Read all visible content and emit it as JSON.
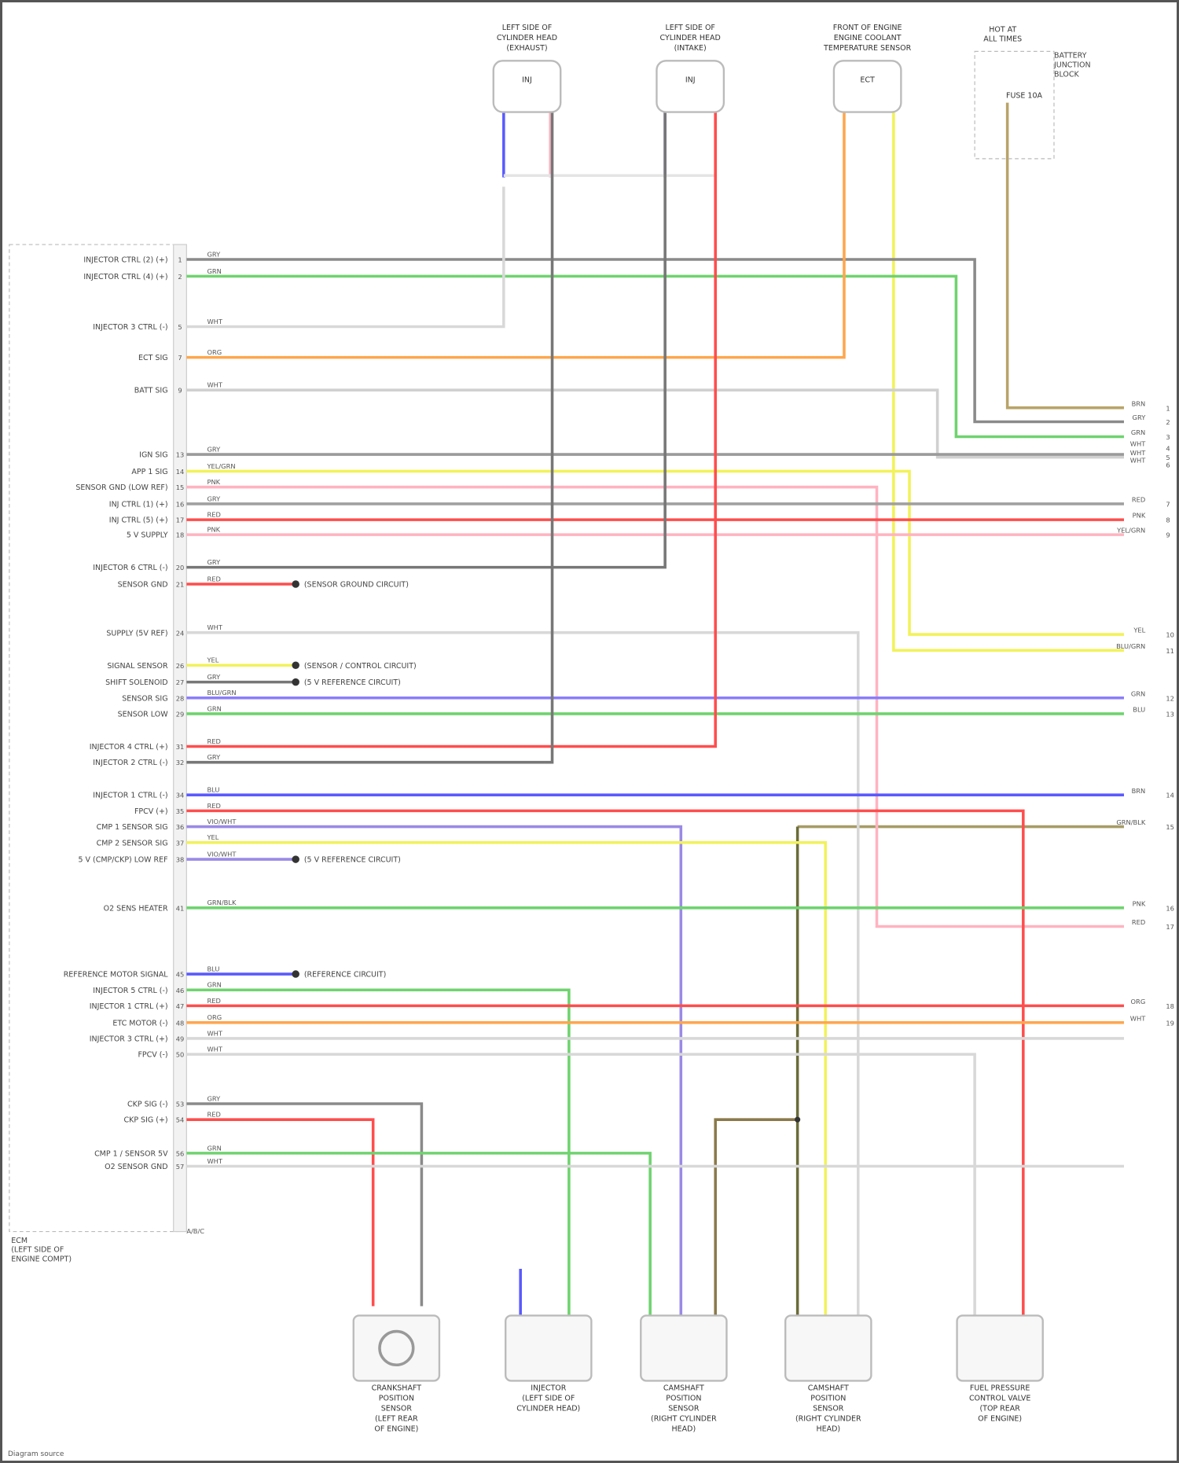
{
  "title": "",
  "ecm": {
    "label": [
      "ECM",
      "(LEFT SIDE OF",
      "ENGINE COMPT)"
    ],
    "connector_id": "A/B/C"
  },
  "top_components": [
    {
      "label": [
        "LEFT SIDE OF",
        "CYLINDER HEAD",
        "(EXHAUST)"
      ],
      "part": "INJ"
    },
    {
      "label": [
        "LEFT SIDE OF",
        "CYLINDER HEAD",
        "(INTAKE)"
      ],
      "part": "INJ"
    },
    {
      "label": [
        "FRONT OF ENGINE",
        "ENGINE COOLANT",
        "TEMPERATURE SENSOR"
      ],
      "part": "ECT"
    },
    {
      "label": [
        "HOT AT",
        "ALL TIMES"
      ],
      "part": "FUSE 10A"
    },
    {
      "label": [
        "BATTERY",
        "JUNCTION",
        "BLOCK"
      ],
      "part": ""
    }
  ],
  "bottom_components": [
    {
      "label": [
        "CRANKSHAFT",
        "POSITION",
        "SENSOR",
        "(LEFT REAR",
        "OF ENGINE)"
      ]
    },
    {
      "label": [
        "INJECTOR",
        "(LEFT SIDE OF",
        "CYLINDER HEAD)"
      ]
    },
    {
      "label": [
        "CAMSHAFT",
        "POSITION",
        "SENSOR",
        "(RIGHT CYLINDER",
        "HEAD)"
      ]
    },
    {
      "label": [
        "CAMSHAFT",
        "POSITION",
        "SENSOR",
        "(RIGHT CYLINDER",
        "HEAD)"
      ]
    },
    {
      "label": [
        "FUEL PRESSURE",
        "CONTROL VALVE",
        "(TOP REAR",
        "OF ENGINE)"
      ]
    }
  ],
  "pins": [
    {
      "pin": "1",
      "label": "INJECTOR CTRL (2) (+)",
      "code": "GRY",
      "color": "#8a8a8a"
    },
    {
      "pin": "2",
      "label": "INJECTOR CTRL (4) (+)",
      "code": "GRN",
      "color": "#6fd36f"
    },
    {
      "pin": "5",
      "label": "INJECTOR 3 CTRL (-)",
      "code": "WHT",
      "color": "#d8d8d8"
    },
    {
      "pin": "7",
      "label": "ECT SIG",
      "code": "ORG",
      "color": "#ffa64d"
    },
    {
      "pin": "9",
      "label": "BATT SIG",
      "code": "WHT",
      "color": "#d0d0d0"
    },
    {
      "pin": "13",
      "label": "IGN SIG",
      "code": "GRY",
      "color": "#9a9a9a"
    },
    {
      "pin": "14",
      "label": "APP 1 SIG",
      "code": "YEL/GRN",
      "color": "#f2f25a"
    },
    {
      "pin": "15",
      "label": "SENSOR GND (LOW REF)",
      "code": "PNK",
      "color": "#ffb3c0"
    },
    {
      "pin": "16",
      "label": "INJ CTRL (1) (+)",
      "code": "GRY",
      "color": "#a0a0a0"
    },
    {
      "pin": "17",
      "label": "INJ CTRL (5) (+)",
      "code": "RED",
      "color": "#ff4d4d"
    },
    {
      "pin": "18",
      "label": "5 V SUPPLY",
      "code": "PNK",
      "color": "#ffb3c0"
    },
    {
      "pin": "20",
      "label": "INJECTOR 6 CTRL (-)",
      "code": "GRY",
      "color": "#777777"
    },
    {
      "pin": "21",
      "label": "SENSOR GND",
      "code": "RED",
      "color": "#ff4d4d"
    },
    {
      "pin": "24",
      "label": "SUPPLY (5V REF)",
      "code": "WHT",
      "color": "#d8d8d8"
    },
    {
      "pin": "26",
      "label": "SIGNAL SENSOR",
      "code": "YEL",
      "color": "#f2f25a"
    },
    {
      "pin": "27",
      "label": "SHIFT SOLENOID",
      "code": "GRY",
      "color": "#777777"
    },
    {
      "pin": "28",
      "label": "SENSOR SIG",
      "code": "BLU/GRN",
      "color": "#8a7dff"
    },
    {
      "pin": "29",
      "label": "SENSOR LOW",
      "code": "GRN",
      "color": "#6fd36f"
    },
    {
      "pin": "31",
      "label": "INJECTOR 4 CTRL (+)",
      "code": "RED",
      "color": "#ff4d4d"
    },
    {
      "pin": "32",
      "label": "INJECTOR 2 CTRL (-)",
      "code": "GRY",
      "color": "#777777"
    },
    {
      "pin": "34",
      "label": "INJECTOR 1 CTRL (-)",
      "code": "BLU",
      "color": "#5a5aff"
    },
    {
      "pin": "35",
      "label": "FPCV (+)",
      "code": "RED",
      "color": "#ff4d4d"
    },
    {
      "pin": "36",
      "label": "CMP 1 SENSOR SIG",
      "code": "VIO/WHT",
      "color": "#9a8ae6"
    },
    {
      "pin": "37",
      "label": "CMP 2 SENSOR SIG",
      "code": "YEL",
      "color": "#f2f25a"
    },
    {
      "pin": "38",
      "label": "5 V (CMP/CKP) LOW REF",
      "code": "VIO/WHT",
      "color": "#9a8ae6"
    },
    {
      "pin": "41",
      "label": "O2 SENS HEATER",
      "code": "GRN/BLK",
      "color": "#6fd36f"
    },
    {
      "pin": "45",
      "label": "REFERENCE MOTOR SIGNAL",
      "code": "BLU",
      "color": "#5a5aff"
    },
    {
      "pin": "46",
      "label": "INJECTOR 5 CTRL (-)",
      "code": "GRN",
      "color": "#6fd36f"
    },
    {
      "pin": "47",
      "label": "INJECTOR 1 CTRL (+)",
      "code": "RED",
      "color": "#ff4d4d"
    },
    {
      "pin": "48",
      "label": "ETC MOTOR (-)",
      "code": "ORG",
      "color": "#ffa64d"
    },
    {
      "pin": "49",
      "label": "INJECTOR 3 CTRL (+)",
      "code": "WHT",
      "color": "#d8d8d8"
    },
    {
      "pin": "50",
      "label": "FPCV (-)",
      "code": "WHT",
      "color": "#d8d8d8"
    },
    {
      "pin": "53",
      "label": "CKP SIG (-)",
      "code": "GRY",
      "color": "#8a8a8a"
    },
    {
      "pin": "54",
      "label": "CKP SIG (+)",
      "code": "RED",
      "color": "#ff4d4d"
    },
    {
      "pin": "56",
      "label": "CMP 1 / SENSOR 5V",
      "code": "GRN",
      "color": "#6fd36f"
    },
    {
      "pin": "57",
      "label": "O2 SENSOR GND",
      "code": "WHT",
      "color": "#d8d8d8"
    }
  ],
  "splices": [
    {
      "text": "(SENSOR GROUND CIRCUIT)"
    },
    {
      "text": "(SENSOR / CONTROL CIRCUIT)"
    },
    {
      "text": "(5 V REFERENCE CIRCUIT)"
    },
    {
      "text": "(5 V REFERENCE CIRCUIT)"
    },
    {
      "text": "(REFERENCE CIRCUIT)"
    }
  ],
  "right_codes": [
    "BRN",
    "GRY",
    "GRN",
    "WHT",
    "WHT",
    "WHT",
    "RED",
    "PNK",
    "YEL/GRN",
    "YEL",
    "BLU/GRN",
    "GRN",
    "BLU",
    "BRN",
    "GRN/BLK",
    "PNK",
    "RED",
    "ORG",
    "WHT"
  ],
  "footer": "Diagram source"
}
